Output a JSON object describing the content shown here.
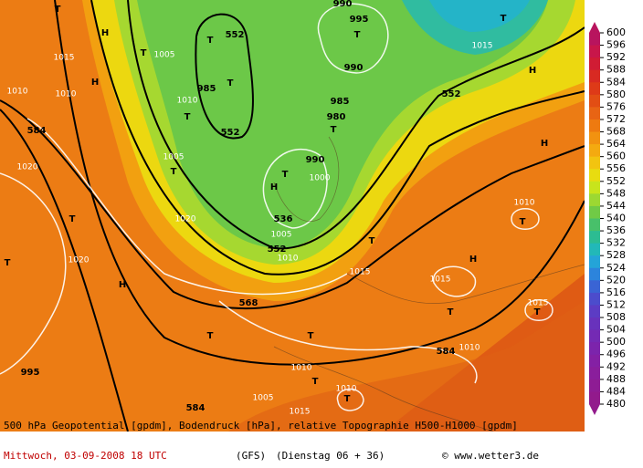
{
  "map": {
    "labels": [
      "552",
      "552",
      "552",
      "536",
      "552",
      "568",
      "584",
      "584",
      "584",
      "T",
      "T",
      "T",
      "T",
      "T",
      "T",
      "T",
      "T",
      "T",
      "T",
      "T",
      "T",
      "T",
      "T",
      "T",
      "T",
      "T",
      "T",
      "T",
      "T",
      "H",
      "H",
      "H",
      "H",
      "H",
      "H",
      "H",
      "1005",
      "1015",
      "1010",
      "1010",
      "1005",
      "1010",
      "985",
      "995",
      "990",
      "990",
      "985",
      "980",
      "990",
      "1000",
      "1005",
      "1020",
      "1020",
      "1020",
      "995",
      "1005",
      "1010",
      "1015",
      "1015",
      "1010",
      "1015",
      "1010",
      "1010",
      "1010",
      "1015",
      "1015"
    ]
  },
  "colorbar": {
    "values": [
      600,
      596,
      592,
      588,
      584,
      580,
      576,
      572,
      568,
      564,
      560,
      556,
      552,
      548,
      544,
      540,
      536,
      532,
      528,
      524,
      520,
      516,
      512,
      508,
      504,
      500,
      496,
      492,
      488,
      484,
      480
    ],
    "colors": [
      "#b8145e",
      "#c8164a",
      "#d01c34",
      "#d82a22",
      "#de3a18",
      "#e24e14",
      "#e86414",
      "#ee7a10",
      "#f29210",
      "#f4aa10",
      "#f2c410",
      "#e8dc10",
      "#c8e41c",
      "#9cd832",
      "#70ca46",
      "#48c06a",
      "#2cbc92",
      "#22b8b8",
      "#24a4d8",
      "#2c84dc",
      "#3a64d4",
      "#4c4ccc",
      "#5c3cc4",
      "#6832bc",
      "#742ab4",
      "#7c24ac",
      "#8420a4",
      "#8a1e9c",
      "#8e1c94",
      "#921a8c"
    ]
  },
  "caption": {
    "line1": "500 hPa Geopotential [gpdm], Bodendruck [hPa], relative Topographie H500-H1000 [gpdm]",
    "date": "Mittwoch, 03-09-2008  18 UTC",
    "model": "(GFS)",
    "run": "(Dienstag 06 + 36)",
    "credit": "© www.wetter3.de"
  }
}
